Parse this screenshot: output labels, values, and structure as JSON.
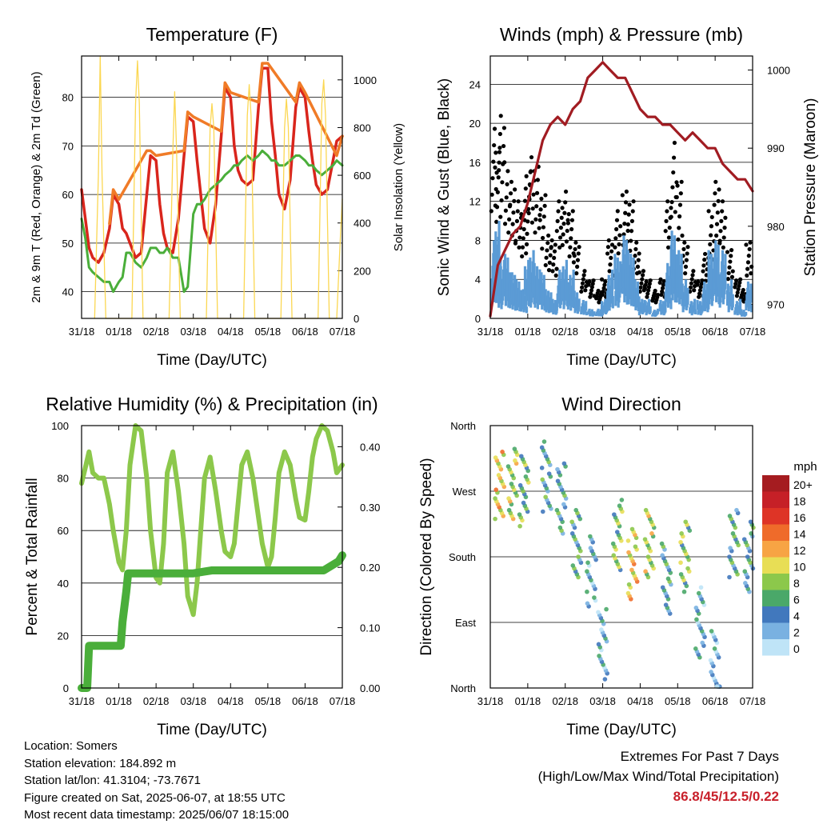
{
  "chart_data": [
    {
      "type": "line",
      "title": "Temperature (F)",
      "xlabel": "Time (Day/UTC)",
      "ylabel_left": "2m & 9m T (Red, Orange) & 2m Td (Green)",
      "ylabel_right": "Solar Insolation (Yellow)",
      "x_ticks": [
        "31/18",
        "01/18",
        "02/18",
        "03/18",
        "04/18",
        "05/18",
        "06/18",
        "07/18"
      ],
      "y_ticks_left": [
        "40",
        "50",
        "60",
        "70",
        "80"
      ],
      "y_ticks_right": [
        "0",
        "200",
        "400",
        "600",
        "800",
        "1000"
      ],
      "ylim_left": [
        34.5,
        88.5
      ],
      "ylim_right": [
        0,
        1100
      ],
      "xlim_days": [
        0,
        7
      ],
      "grid": true,
      "series": [
        {
          "color": "#d9251c",
          "x": [
            0,
            0.1,
            0.2,
            0.3,
            0.45,
            0.6,
            0.75,
            0.85,
            1.0,
            1.1,
            1.2,
            1.3,
            1.45,
            1.6,
            1.75,
            1.85,
            2.0,
            2.1,
            2.2,
            2.3,
            2.45,
            2.6,
            2.75,
            2.85,
            3.0,
            3.1,
            3.2,
            3.3,
            3.45,
            3.6,
            3.75,
            3.85,
            4.0,
            4.1,
            4.2,
            4.3,
            4.45,
            4.6,
            4.75,
            4.85,
            5.0,
            5.1,
            5.2,
            5.3,
            5.45,
            5.6,
            5.75,
            5.85,
            6.0,
            6.1,
            6.2,
            6.3,
            6.45,
            6.6,
            6.75,
            6.85,
            7.0
          ],
          "values": [
            61,
            55,
            49,
            47,
            46,
            48,
            53,
            60,
            58,
            53,
            52,
            50,
            47,
            48,
            60,
            68,
            67,
            58,
            52,
            49,
            48,
            55,
            68,
            76,
            75,
            67,
            60,
            53,
            50,
            58,
            72,
            82,
            80,
            70,
            65,
            63,
            62,
            63,
            78,
            86,
            86,
            75,
            68,
            60,
            57,
            63,
            78,
            82,
            80,
            73,
            67,
            62,
            60,
            61,
            67,
            71,
            72
          ]
        },
        {
          "color": "#f07b27",
          "x": [
            0.75,
            0.85,
            1.0,
            1.75,
            1.85,
            2.0,
            2.75,
            2.85,
            3.0,
            3.75,
            3.85,
            4.0,
            4.75,
            4.85,
            5.0,
            5.75,
            5.85,
            6.0,
            6.85,
            7.0
          ],
          "values": [
            54,
            61,
            59,
            69,
            69,
            68,
            69,
            77,
            76,
            73,
            83,
            81,
            79,
            87,
            87,
            79,
            83,
            81,
            68,
            72
          ]
        },
        {
          "color": "#4aae3a",
          "x": [
            0,
            0.1,
            0.2,
            0.3,
            0.45,
            0.6,
            0.75,
            0.85,
            1.0,
            1.1,
            1.2,
            1.3,
            1.45,
            1.6,
            1.75,
            1.85,
            2.0,
            2.1,
            2.2,
            2.3,
            2.45,
            2.6,
            2.75,
            2.85,
            3.0,
            3.1,
            3.2,
            3.3,
            3.45,
            3.6,
            3.75,
            3.85,
            4.0,
            4.1,
            4.2,
            4.3,
            4.45,
            4.6,
            4.75,
            4.85,
            5.0,
            5.1,
            5.2,
            5.3,
            5.45,
            5.6,
            5.75,
            5.85,
            6.0,
            6.1,
            6.2,
            6.3,
            6.45,
            6.6,
            6.75,
            6.85,
            7.0
          ],
          "values": [
            55,
            51,
            45,
            44,
            43,
            42,
            42,
            40,
            42,
            43,
            48,
            48,
            46,
            45,
            47,
            49,
            49,
            48,
            48,
            49,
            47,
            47,
            40,
            41,
            56,
            58,
            58,
            59,
            61,
            62,
            63,
            64,
            65,
            66,
            66,
            67,
            68,
            67,
            68,
            69,
            68,
            67,
            67,
            66,
            66,
            67,
            68,
            68,
            67,
            66,
            66,
            65,
            64,
            65,
            66,
            67,
            66
          ]
        },
        {
          "color": "#fbd752",
          "x": [
            0.35,
            0.45,
            0.5,
            0.55,
            0.65,
            1.35,
            1.45,
            1.5,
            1.55,
            1.65,
            2.35,
            2.45,
            2.5,
            2.55,
            2.65,
            3.35,
            3.45,
            3.5,
            3.55,
            3.65,
            4.35,
            4.45,
            4.5,
            4.55,
            4.65,
            5.35,
            5.45,
            5.5,
            5.55,
            5.65,
            6.35,
            6.45,
            6.5,
            6.55,
            6.65,
            6.85,
            6.95,
            7.0
          ],
          "values_right": [
            0,
            600,
            1100,
            600,
            0,
            0,
            900,
            1080,
            900,
            0,
            0,
            700,
            950,
            700,
            0,
            0,
            800,
            900,
            800,
            0,
            0,
            850,
            980,
            850,
            0,
            0,
            800,
            920,
            800,
            0,
            0,
            900,
            1000,
            850,
            0,
            0,
            350,
            500
          ]
        }
      ]
    },
    {
      "type": "scatter",
      "title": "Winds (mph) & Pressure (mb)",
      "xlabel": "Time (Day/UTC)",
      "ylabel_left": "Sonic Wind & Gust (Blue, Black)",
      "ylabel_right": "Station Pressure (Maroon)",
      "x_ticks": [
        "31/18",
        "01/18",
        "02/18",
        "03/18",
        "04/18",
        "05/18",
        "06/18",
        "07/18"
      ],
      "y_ticks_left": [
        "0",
        "4",
        "8",
        "12",
        "16",
        "20",
        "24"
      ],
      "y_ticks_right": [
        "970",
        "980",
        "990",
        "1000"
      ],
      "ylim_left": [
        0,
        26.9
      ],
      "ylim_right": [
        968.2,
        1001.8
      ],
      "xlim_days": [
        0,
        7
      ],
      "grid": true,
      "series": [
        {
          "name_hint": "pressure",
          "color": "#a11c22",
          "x": [
            0,
            0.2,
            0.4,
            0.6,
            0.8,
            1.0,
            1.2,
            1.4,
            1.6,
            1.8,
            2.0,
            2.2,
            2.4,
            2.6,
            2.8,
            3.0,
            3.2,
            3.4,
            3.6,
            3.8,
            4.0,
            4.2,
            4.4,
            4.6,
            4.8,
            5.0,
            5.2,
            5.4,
            5.6,
            5.8,
            6.0,
            6.2,
            6.4,
            6.6,
            6.8,
            7.0
          ],
          "values_right": [
            968.5,
            975,
            977,
            979,
            980,
            983,
            987,
            991,
            993,
            994,
            993,
            995,
            996,
            999,
            1000,
            1001,
            1000,
            999,
            999,
            997,
            995,
            994,
            994,
            993,
            993,
            992,
            991,
            992,
            991,
            990,
            990,
            988,
            987,
            986,
            986,
            984.5
          ]
        },
        {
          "name_hint": "gust",
          "color": "#000000",
          "x": [
            0.1,
            0.2,
            0.3,
            0.45,
            0.6,
            0.75,
            0.9,
            1.0,
            1.1,
            1.25,
            1.4,
            1.55,
            1.7,
            1.85,
            2.0,
            2.15,
            2.3,
            2.5,
            2.7,
            2.9,
            3.05,
            3.2,
            3.4,
            3.6,
            3.75,
            3.9,
            4.05,
            4.2,
            4.4,
            4.6,
            4.75,
            4.9,
            5.05,
            5.2,
            5.4,
            5.6,
            5.75,
            5.9,
            6.05,
            6.2,
            6.4,
            6.6,
            6.75,
            6.9
          ],
          "values": [
            20,
            18,
            22,
            16,
            14,
            12,
            11,
            15,
            17,
            16,
            13,
            9,
            8,
            12,
            13,
            11,
            8,
            5,
            4,
            3,
            4,
            8,
            11,
            13,
            12,
            8,
            5,
            4,
            3,
            4,
            12,
            18,
            14,
            8,
            5,
            4,
            7,
            11,
            14,
            12,
            7,
            4,
            3,
            8
          ]
        },
        {
          "name_hint": "wind",
          "color": "#5b9bd5",
          "x": [
            0.1,
            0.2,
            0.3,
            0.45,
            0.6,
            0.75,
            0.9,
            1.0,
            1.1,
            1.25,
            1.4,
            1.55,
            1.7,
            1.85,
            2.0,
            2.15,
            2.3,
            2.5,
            2.7,
            2.9,
            3.05,
            3.2,
            3.4,
            3.6,
            3.75,
            3.9,
            4.05,
            4.2,
            4.4,
            4.6,
            4.75,
            4.9,
            5.05,
            5.2,
            5.4,
            5.6,
            5.75,
            5.9,
            6.05,
            6.2,
            6.4,
            6.6,
            6.75,
            6.9
          ],
          "values": [
            8,
            10,
            6,
            7,
            5,
            4,
            3,
            6,
            7,
            6,
            5,
            3,
            2,
            5,
            6,
            5,
            3,
            2,
            1,
            1,
            2,
            5,
            7,
            9,
            7,
            4,
            2,
            2,
            1,
            2,
            6,
            9,
            7,
            4,
            2,
            2,
            4,
            7,
            8,
            7,
            4,
            2,
            1,
            4
          ]
        }
      ]
    },
    {
      "type": "line",
      "title": "Relative Humidity (%) & Precipitation (in)",
      "xlabel": "Time (Day/UTC)",
      "ylabel": "Percent & Total Rainfall",
      "x_ticks": [
        "31/18",
        "01/18",
        "02/18",
        "03/18",
        "04/18",
        "05/18",
        "06/18",
        "07/18"
      ],
      "y_ticks_left": [
        "0",
        "20",
        "40",
        "60",
        "80",
        "100"
      ],
      "y_ticks_right": [
        "0.00",
        "0.10",
        "0.20",
        "0.30",
        "0.40"
      ],
      "ylim_left": [
        0,
        100
      ],
      "ylim_right": [
        0,
        0.435
      ],
      "xlim_days": [
        0,
        7
      ],
      "grid": true,
      "series": [
        {
          "name_hint": "rh",
          "color": "#8cc84b",
          "x": [
            0,
            0.1,
            0.2,
            0.3,
            0.45,
            0.6,
            0.75,
            0.85,
            1.0,
            1.1,
            1.2,
            1.3,
            1.45,
            1.6,
            1.75,
            1.85,
            2.0,
            2.1,
            2.2,
            2.3,
            2.45,
            2.6,
            2.75,
            2.85,
            3.0,
            3.1,
            3.2,
            3.3,
            3.45,
            3.6,
            3.75,
            3.85,
            4.0,
            4.1,
            4.2,
            4.3,
            4.45,
            4.6,
            4.75,
            4.85,
            5.0,
            5.1,
            5.2,
            5.3,
            5.45,
            5.6,
            5.75,
            5.85,
            6.0,
            6.1,
            6.2,
            6.3,
            6.45,
            6.6,
            6.75,
            6.85,
            7.0
          ],
          "values": [
            78,
            84,
            90,
            82,
            80,
            80,
            70,
            60,
            48,
            45,
            60,
            85,
            100,
            98,
            80,
            60,
            42,
            40,
            55,
            82,
            90,
            75,
            55,
            35,
            28,
            40,
            60,
            80,
            88,
            75,
            60,
            52,
            50,
            55,
            70,
            85,
            90,
            80,
            65,
            55,
            46,
            50,
            65,
            82,
            90,
            85,
            72,
            65,
            64,
            75,
            88,
            95,
            100,
            98,
            90,
            82,
            85
          ]
        },
        {
          "name_hint": "precip",
          "color": "#4aae3a",
          "x": [
            0,
            0.15,
            0.2,
            0.3,
            0.5,
            0.7,
            0.9,
            1.05,
            1.1,
            1.2,
            1.25,
            1.35,
            1.6,
            2.0,
            2.5,
            3.0,
            3.5,
            4.0,
            4.5,
            5.0,
            5.5,
            6.0,
            6.5,
            6.9,
            7.0
          ],
          "values_right": [
            0,
            0,
            0.07,
            0.07,
            0.07,
            0.07,
            0.07,
            0.07,
            0.11,
            0.16,
            0.19,
            0.19,
            0.19,
            0.19,
            0.19,
            0.19,
            0.195,
            0.195,
            0.195,
            0.195,
            0.195,
            0.195,
            0.195,
            0.21,
            0.22
          ]
        }
      ]
    },
    {
      "type": "scatter",
      "title": "Wind Direction",
      "xlabel": "Time (Day/UTC)",
      "ylabel": "Direction (Colored By Speed)",
      "x_ticks": [
        "31/18",
        "01/18",
        "02/18",
        "03/18",
        "04/18",
        "05/18",
        "06/18",
        "07/18"
      ],
      "y_ticks_left": [
        "North",
        "East",
        "South",
        "West",
        "North"
      ],
      "ylim_degrees": [
        0,
        360
      ],
      "xlim_days": [
        0,
        7
      ],
      "grid": true,
      "colorbar": {
        "title": "mph",
        "labels": [
          "20+",
          "18",
          "16",
          "14",
          "12",
          "10",
          "8",
          "6",
          "4",
          "2",
          "0"
        ],
        "colors": [
          "#a51c20",
          "#c62027",
          "#de3426",
          "#ef6b2a",
          "#f7a444",
          "#e8de55",
          "#8cc84b",
          "#4aa869",
          "#4178bd",
          "#79b1e1",
          "#bfe4f7"
        ]
      },
      "clusters": [
        {
          "x": 0.25,
          "deg": 280,
          "speed": 10
        },
        {
          "x": 0.6,
          "deg": 280,
          "speed": 8
        },
        {
          "x": 0.9,
          "deg": 270,
          "speed": 6
        },
        {
          "x": 1.5,
          "deg": 290,
          "speed": 4
        },
        {
          "x": 1.9,
          "deg": 260,
          "speed": 4
        },
        {
          "x": 2.3,
          "deg": 200,
          "speed": 5
        },
        {
          "x": 2.7,
          "deg": 160,
          "speed": 3
        },
        {
          "x": 3.0,
          "deg": 60,
          "speed": 3
        },
        {
          "x": 3.4,
          "deg": 210,
          "speed": 7
        },
        {
          "x": 3.8,
          "deg": 170,
          "speed": 10
        },
        {
          "x": 4.25,
          "deg": 200,
          "speed": 8
        },
        {
          "x": 4.7,
          "deg": 150,
          "speed": 4
        },
        {
          "x": 5.2,
          "deg": 180,
          "speed": 7
        },
        {
          "x": 5.6,
          "deg": 90,
          "speed": 3
        },
        {
          "x": 6.0,
          "deg": 30,
          "speed": 2
        },
        {
          "x": 6.5,
          "deg": 200,
          "speed": 5
        },
        {
          "x": 6.9,
          "deg": 180,
          "speed": 4
        }
      ]
    }
  ],
  "info": {
    "location": "Location: Somers",
    "elevation": "Station elevation: 184.892 m",
    "latlon": "Station lat/lon: 41.3104; -73.7671",
    "created": "Figure created on Sat, 2025-06-07, at 18:55 UTC",
    "recent": "Most recent data timestamp: 2025/06/07 18:15:00"
  },
  "extremes": {
    "line1": "Extremes For Past 7 Days",
    "line2": "(High/Low/Max Wind/Total Precipitation)",
    "values": "86.8/45/12.5/0.22"
  }
}
